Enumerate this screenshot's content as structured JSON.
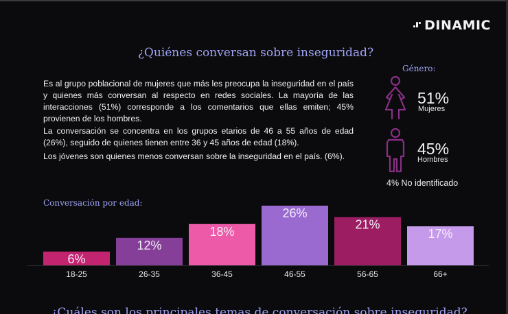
{
  "header": {
    "logo_text": "DINAMIC",
    "title": "¿Quiénes conversan sobre inseguridad?"
  },
  "body_text": {
    "paragraph_1": "Es al grupo poblacional de mujeres que más les preocupa la inseguridad en el país y quienes más conversan al respecto en redes sociales. La mayoría de las interacciones (51%) corresponde a los comentarios que ellas emiten; 45% provienen de los hombres.",
    "paragraph_2": "La conversación se concentra en los grupos etarios de 46 a 55 años de edad (26%), seguido de quienes tienen entre 36 y 45 años de edad (18%).",
    "paragraph_3": "Los jóvenes son quienes menos conversan sobre la inseguridad en el país. (6%)."
  },
  "gender": {
    "title": "Género:",
    "women": {
      "value": "51%",
      "label": "Mujeres",
      "icon": "woman-icon"
    },
    "men": {
      "value": "45%",
      "label": "Hombres",
      "icon": "man-icon"
    },
    "unidentified": "4% No identificado"
  },
  "age_section": {
    "title": "Conversación por edad:"
  },
  "chart_data": {
    "type": "bar",
    "categories": [
      "18-25",
      "26-35",
      "36-45",
      "46-55",
      "56-65",
      "66+"
    ],
    "values": [
      6,
      12,
      18,
      26,
      21,
      17
    ],
    "value_labels": [
      "6%",
      "12%",
      "18%",
      "26%",
      "21%",
      "17%"
    ],
    "colors": [
      "#c2246f",
      "#863f98",
      "#ec5aa8",
      "#9a6ad1",
      "#9c1d62",
      "#c59aeb"
    ],
    "title": "Conversación por edad:",
    "xlabel": "",
    "ylabel": "",
    "ylim": [
      0,
      26
    ],
    "grid": false,
    "legend": "none"
  },
  "footer": {
    "next_title": "¿Cuáles son los principales temas de conversación sobre inseguridad?"
  },
  "colors": {
    "background": "#0b0b0d",
    "heading": "#9fa3f5",
    "icon_accent": "#8a2f86",
    "text": "#f1f1f1"
  }
}
